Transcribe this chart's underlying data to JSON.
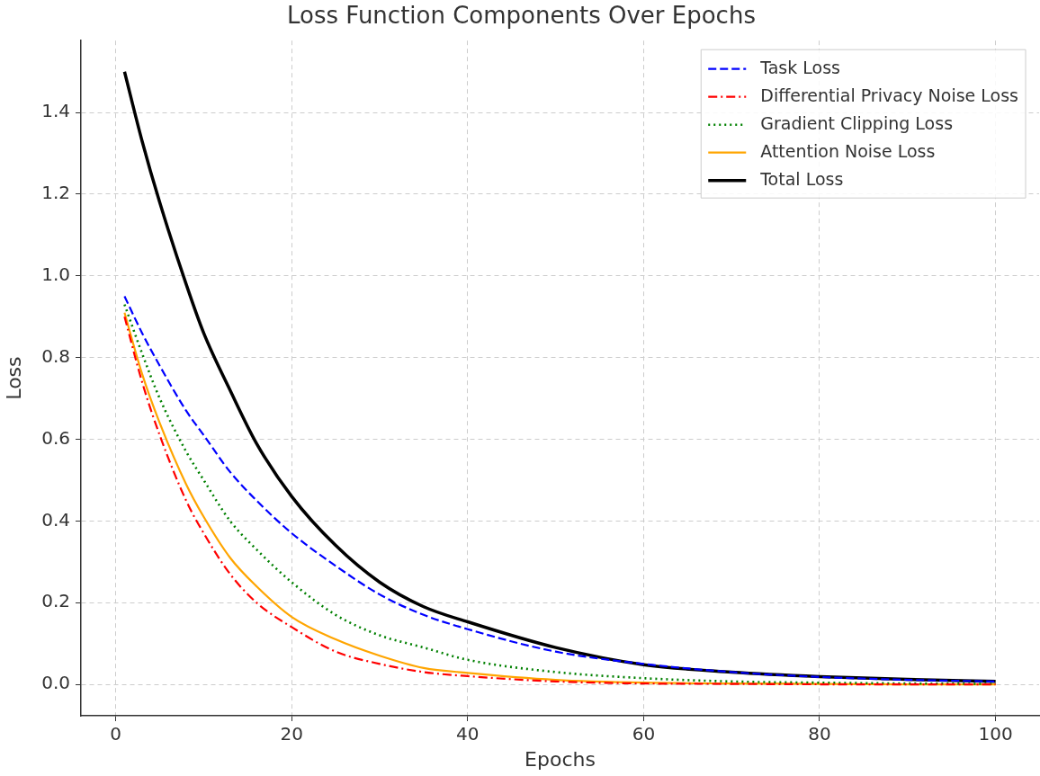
{
  "chart_data": {
    "type": "line",
    "title": "Loss Function Components Over Epochs",
    "xlabel": "Epochs",
    "ylabel": "Loss",
    "x": [
      1,
      3,
      5,
      8,
      10,
      13,
      16,
      20,
      25,
      30,
      35,
      40,
      50,
      60,
      70,
      80,
      90,
      100
    ],
    "series": [
      {
        "name": "Task Loss",
        "color": "#0000ff",
        "line_style": "dashed",
        "values": [
          0.95,
          0.86,
          0.78,
          0.67,
          0.61,
          0.52,
          0.45,
          0.37,
          0.29,
          0.22,
          0.17,
          0.135,
          0.08,
          0.05,
          0.03,
          0.018,
          0.011,
          0.007
        ]
      },
      {
        "name": "Differential Privacy Noise Loss",
        "color": "#ff0000",
        "line_style": "dashdot",
        "values": [
          0.9,
          0.74,
          0.61,
          0.45,
          0.37,
          0.27,
          0.2,
          0.14,
          0.08,
          0.05,
          0.03,
          0.02,
          0.007,
          0.002,
          0.001,
          0,
          0,
          0
        ]
      },
      {
        "name": "Gradient Clipping Loss",
        "color": "#008000",
        "line_style": "dotted",
        "values": [
          0.93,
          0.81,
          0.7,
          0.57,
          0.5,
          0.4,
          0.33,
          0.25,
          0.17,
          0.12,
          0.09,
          0.06,
          0.03,
          0.015,
          0.007,
          0.004,
          0.002,
          0.001
        ]
      },
      {
        "name": "Attention Noise Loss",
        "color": "#ffa500",
        "line_style": "solid",
        "values": [
          0.91,
          0.76,
          0.64,
          0.49,
          0.41,
          0.31,
          0.24,
          0.165,
          0.11,
          0.07,
          0.04,
          0.028,
          0.011,
          0.004,
          0.002,
          0.001,
          0,
          0
        ]
      },
      {
        "name": "Total Loss",
        "color": "#000000",
        "line_style": "solid",
        "values": [
          1.5,
          1.33,
          1.18,
          0.98,
          0.86,
          0.72,
          0.59,
          0.46,
          0.34,
          0.25,
          0.19,
          0.153,
          0.09,
          0.048,
          0.03,
          0.019,
          0.012,
          0.007
        ]
      }
    ],
    "xlim": [
      -3.95,
      104.95
    ],
    "ylim": [
      -0.077,
      1.576
    ],
    "xticks": [
      0,
      20,
      40,
      60,
      80,
      100
    ],
    "yticks": [
      {
        "value": 0,
        "label": "0.0"
      },
      {
        "value": 0.2,
        "label": "0.2"
      },
      {
        "value": 0.4,
        "label": "0.4"
      },
      {
        "value": 0.6,
        "label": "0.6"
      },
      {
        "value": 0.8,
        "label": "0.8"
      },
      {
        "value": 1.0,
        "label": "1.0"
      },
      {
        "value": 1.2,
        "label": "1.2"
      },
      {
        "value": 1.4,
        "label": "1.4"
      }
    ],
    "grid": true,
    "legend": "top right",
    "marker": "none"
  }
}
